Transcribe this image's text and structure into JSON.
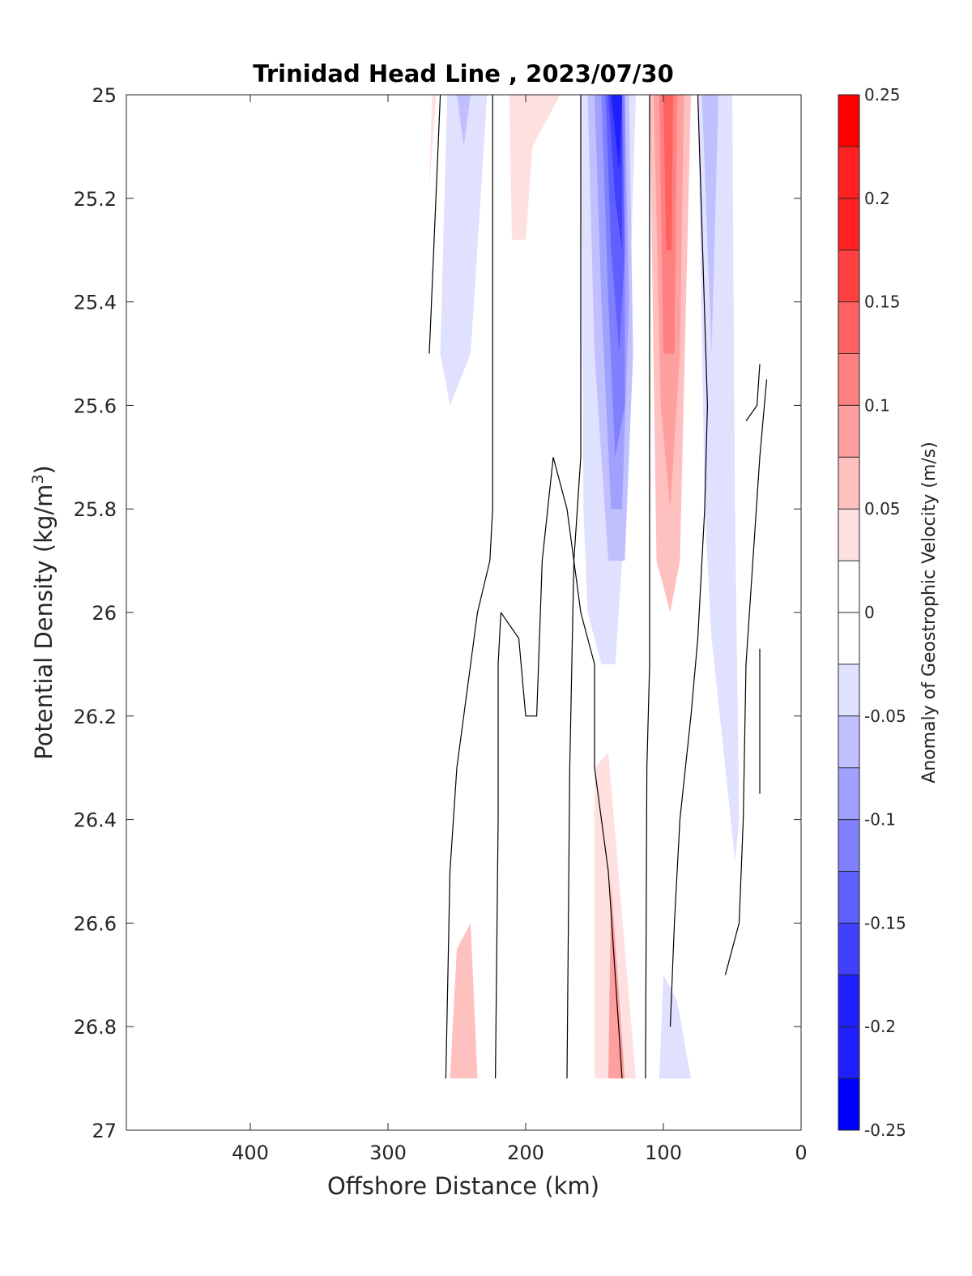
{
  "chart_data": {
    "type": "heatmap",
    "subtype": "filled-contour",
    "title": "Trinidad Head Line , 2023/07/30",
    "xlabel": "Offshore Distance (km)",
    "ylabel": "Potential Density (kg/m",
    "ylabel_sup": "3",
    "ylabel_end": ")",
    "xlim": [
      490,
      0
    ],
    "x_reversed": true,
    "ylim": [
      25,
      27
    ],
    "y_reversed": true,
    "xticks": [
      400,
      300,
      200,
      100,
      0
    ],
    "xtick_labels": [
      "400",
      "300",
      "200",
      "100",
      "0"
    ],
    "yticks": [
      25,
      25.2,
      25.4,
      25.6,
      25.8,
      26,
      26.2,
      26.4,
      26.6,
      26.8,
      27
    ],
    "ytick_labels": [
      "25",
      "25.2",
      "25.4",
      "25.6",
      "25.8",
      "26",
      "26.2",
      "26.4",
      "26.6",
      "26.8",
      "27"
    ],
    "colorbar": {
      "label": "Anomaly of Geostrophic Velocity (m/s)",
      "range": [
        -0.25,
        0.25
      ],
      "tick_values": [
        0.25,
        0.2,
        0.15,
        0.1,
        0.05,
        0,
        -0.05,
        -0.1,
        -0.15,
        -0.2,
        -0.25
      ],
      "tick_labels": [
        "0.25",
        "0.2",
        "0.15",
        "0.1",
        "0.05",
        "0",
        "-0.05",
        "-0.1",
        "-0.15",
        "-0.2",
        "-0.25"
      ],
      "levels": [
        {
          "lo": 0.225,
          "hi": 0.25,
          "color": "#ff0000"
        },
        {
          "lo": 0.175,
          "hi": 0.225,
          "color": "#ff2020"
        },
        {
          "lo": 0.15,
          "hi": 0.175,
          "color": "#ff4040"
        },
        {
          "lo": 0.125,
          "hi": 0.15,
          "color": "#ff6060"
        },
        {
          "lo": 0.1,
          "hi": 0.125,
          "color": "#ff8080"
        },
        {
          "lo": 0.075,
          "hi": 0.1,
          "color": "#ffa0a0"
        },
        {
          "lo": 0.05,
          "hi": 0.075,
          "color": "#ffc0c0"
        },
        {
          "lo": 0.025,
          "hi": 0.05,
          "color": "#ffe0e0"
        },
        {
          "lo": 0,
          "hi": 0.025,
          "color": "#ffffff"
        },
        {
          "lo": -0.025,
          "hi": 0,
          "color": "#ffffff"
        },
        {
          "lo": -0.05,
          "hi": -0.025,
          "color": "#e0e0ff"
        },
        {
          "lo": -0.075,
          "hi": -0.05,
          "color": "#c0c0ff"
        },
        {
          "lo": -0.1,
          "hi": -0.075,
          "color": "#a0a0ff"
        },
        {
          "lo": -0.125,
          "hi": -0.1,
          "color": "#8080ff"
        },
        {
          "lo": -0.15,
          "hi": -0.125,
          "color": "#6060ff"
        },
        {
          "lo": -0.175,
          "hi": -0.15,
          "color": "#4040ff"
        },
        {
          "lo": -0.225,
          "hi": -0.175,
          "color": "#2020ff"
        },
        {
          "lo": -0.25,
          "hi": -0.225,
          "color": "#0000ff"
        }
      ]
    },
    "zero_contours": [
      [
        [
          270,
          25.5
        ],
        [
          262,
          25.0
        ]
      ],
      [
        [
          258,
          26.9
        ],
        [
          255,
          26.5
        ],
        [
          250,
          26.3
        ],
        [
          240,
          26.1
        ],
        [
          235,
          26.0
        ],
        [
          226,
          25.9
        ],
        [
          224,
          25.8
        ],
        [
          224,
          25.0
        ]
      ],
      [
        [
          222,
          26.9
        ],
        [
          220,
          26.4
        ],
        [
          220,
          26.1
        ],
        [
          218,
          26.0
        ]
      ],
      [
        [
          218,
          26.0
        ],
        [
          205,
          26.05
        ],
        [
          200,
          26.2
        ],
        [
          192,
          26.2
        ],
        [
          188,
          25.9
        ],
        [
          180,
          25.7
        ],
        [
          170,
          25.8
        ],
        [
          165,
          25.9
        ],
        [
          160,
          26.0
        ],
        [
          150,
          26.1
        ],
        [
          150,
          26.3
        ],
        [
          140,
          26.5
        ],
        [
          135,
          26.7
        ],
        [
          130,
          26.9
        ]
      ],
      [
        [
          170,
          26.9
        ],
        [
          168,
          26.3
        ],
        [
          165,
          25.9
        ],
        [
          160,
          25.7
        ],
        [
          160,
          25.0
        ]
      ],
      [
        [
          113,
          26.9
        ],
        [
          112,
          26.3
        ],
        [
          110,
          26.1
        ],
        [
          110,
          25.0
        ]
      ],
      [
        [
          95,
          26.8
        ],
        [
          92,
          26.6
        ],
        [
          88,
          26.4
        ],
        [
          80,
          26.2
        ],
        [
          75,
          26.05
        ],
        [
          70,
          25.8
        ],
        [
          68,
          25.6
        ],
        [
          75,
          25.0
        ]
      ],
      [
        [
          55,
          26.7
        ],
        [
          50,
          26.65
        ],
        [
          45,
          26.6
        ],
        [
          42,
          26.4
        ],
        [
          40,
          26.1
        ],
        [
          35,
          25.9
        ],
        [
          30,
          25.7
        ],
        [
          25,
          25.55
        ]
      ],
      [
        [
          30,
          26.35
        ],
        [
          30,
          26.07
        ]
      ],
      [
        [
          40,
          25.63
        ],
        [
          32,
          25.6
        ],
        [
          30,
          25.52
        ]
      ]
    ],
    "contour_regions": [
      {
        "level": -0.05,
        "polygon": [
          [
            257,
            25.0
          ],
          [
            262,
            25.5
          ],
          [
            255,
            25.6
          ],
          [
            240,
            25.5
          ],
          [
            228,
            25.0
          ]
        ]
      },
      {
        "level": -0.075,
        "polygon": [
          [
            250,
            25.0
          ],
          [
            245,
            25.1
          ],
          [
            240,
            25.0
          ]
        ]
      },
      {
        "level": 0.04,
        "polygon": [
          [
            212,
            25.0
          ],
          [
            210,
            25.28
          ],
          [
            200,
            25.28
          ],
          [
            195,
            25.1
          ],
          [
            175,
            25.0
          ]
        ]
      },
      {
        "level": 0.04,
        "polygon": [
          [
            268,
            25.0
          ],
          [
            270,
            25.18
          ],
          [
            265,
            25.0
          ]
        ]
      },
      {
        "level": -0.05,
        "polygon": [
          [
            160,
            25.0
          ],
          [
            158,
            25.8
          ],
          [
            155,
            26.0
          ],
          [
            145,
            26.1
          ],
          [
            135,
            26.1
          ],
          [
            130,
            25.9
          ],
          [
            120,
            25.0
          ]
        ]
      },
      {
        "level": -0.075,
        "polygon": [
          [
            155,
            25.0
          ],
          [
            150,
            25.5
          ],
          [
            140,
            25.9
          ],
          [
            128,
            25.9
          ],
          [
            122,
            25.5
          ],
          [
            125,
            25.0
          ]
        ]
      },
      {
        "level": -0.1,
        "polygon": [
          [
            150,
            25.0
          ],
          [
            145,
            25.4
          ],
          [
            138,
            25.8
          ],
          [
            130,
            25.8
          ],
          [
            125,
            25.4
          ],
          [
            128,
            25.0
          ]
        ]
      },
      {
        "level": -0.125,
        "polygon": [
          [
            145,
            25.0
          ],
          [
            140,
            25.4
          ],
          [
            135,
            25.7
          ],
          [
            128,
            25.6
          ],
          [
            128,
            25.0
          ]
        ]
      },
      {
        "level": -0.15,
        "polygon": [
          [
            142,
            25.0
          ],
          [
            138,
            25.3
          ],
          [
            132,
            25.5
          ],
          [
            128,
            25.3
          ],
          [
            130,
            25.0
          ]
        ]
      },
      {
        "level": -0.175,
        "polygon": [
          [
            140,
            25.0
          ],
          [
            135,
            25.2
          ],
          [
            130,
            25.3
          ],
          [
            130,
            25.0
          ]
        ]
      },
      {
        "level": -0.2,
        "polygon": [
          [
            138,
            25.0
          ],
          [
            132,
            25.15
          ],
          [
            130,
            25.0
          ]
        ]
      },
      {
        "level": 0.05,
        "polygon": [
          [
            110,
            25.0
          ],
          [
            105,
            25.9
          ],
          [
            95,
            26.0
          ],
          [
            88,
            25.9
          ],
          [
            80,
            25.0
          ]
        ]
      },
      {
        "level": 0.075,
        "polygon": [
          [
            107,
            25.0
          ],
          [
            102,
            25.6
          ],
          [
            95,
            25.8
          ],
          [
            88,
            25.5
          ],
          [
            85,
            25.0
          ]
        ]
      },
      {
        "level": 0.1,
        "polygon": [
          [
            103,
            25.0
          ],
          [
            100,
            25.5
          ],
          [
            92,
            25.5
          ],
          [
            90,
            25.0
          ]
        ]
      },
      {
        "level": 0.125,
        "polygon": [
          [
            100,
            25.0
          ],
          [
            98,
            25.3
          ],
          [
            94,
            25.3
          ],
          [
            93,
            25.0
          ]
        ]
      },
      {
        "level": -0.04,
        "polygon": [
          [
            75,
            25.0
          ],
          [
            70,
            25.8
          ],
          [
            65,
            26.05
          ],
          [
            55,
            26.3
          ],
          [
            48,
            26.48
          ],
          [
            45,
            26.4
          ],
          [
            48,
            25.8
          ],
          [
            50,
            25.0
          ]
        ]
      },
      {
        "level": -0.075,
        "polygon": [
          [
            72,
            25.0
          ],
          [
            65,
            25.5
          ],
          [
            60,
            25.0
          ]
        ]
      },
      {
        "level": 0.04,
        "polygon": [
          [
            150,
            26.9
          ],
          [
            150,
            26.3
          ],
          [
            140,
            26.27
          ],
          [
            120,
            26.9
          ]
        ]
      },
      {
        "level": 0.075,
        "polygon": [
          [
            140,
            26.9
          ],
          [
            138,
            26.52
          ],
          [
            128,
            26.9
          ]
        ]
      },
      {
        "level": 0.05,
        "polygon": [
          [
            255,
            26.9
          ],
          [
            250,
            26.65
          ],
          [
            240,
            26.6
          ],
          [
            235,
            26.9
          ]
        ]
      },
      {
        "level": -0.04,
        "polygon": [
          [
            103,
            26.9
          ],
          [
            100,
            26.7
          ],
          [
            90,
            26.75
          ],
          [
            80,
            26.9
          ]
        ]
      },
      {
        "level": 0.04,
        "polygon": [
          [
            40,
            25.0
          ],
          [
            38,
            25.08
          ],
          [
            40,
            25.0
          ]
        ]
      }
    ]
  }
}
